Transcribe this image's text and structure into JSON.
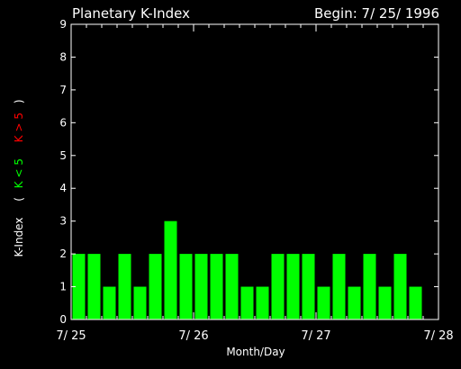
{
  "chart_data": {
    "type": "bar",
    "title": "Planetary K-Index",
    "begin_label": "Begin: 7/ 25/ 1996",
    "xlabel": "Month/Day",
    "ylabel_parts": [
      "K-Index",
      "(",
      "K < 5",
      "K > 5",
      ")"
    ],
    "ylim": [
      0,
      9
    ],
    "y_ticks": [
      "0",
      "1",
      "2",
      "3",
      "4",
      "5",
      "6",
      "7",
      "8",
      "9"
    ],
    "x_tick_labels": [
      "7/ 25",
      "7/ 26",
      "7/ 27",
      "7/ 28"
    ],
    "x_range_days": [
      0,
      3
    ],
    "bar_width_days": 0.125,
    "values": [
      2,
      2,
      1,
      2,
      1,
      2,
      3,
      2,
      2,
      2,
      2,
      1,
      1,
      2,
      2,
      2,
      1,
      2,
      1,
      2,
      1,
      2,
      1
    ],
    "threshold": 5,
    "grid": false,
    "colors": {
      "background": "#000000",
      "axis": "#ffffff",
      "text": "#ffffff",
      "bar_low": "#00ff00",
      "bar_high": "#ff0000",
      "label_low": "#00ff00",
      "label_high": "#ff0000"
    }
  }
}
